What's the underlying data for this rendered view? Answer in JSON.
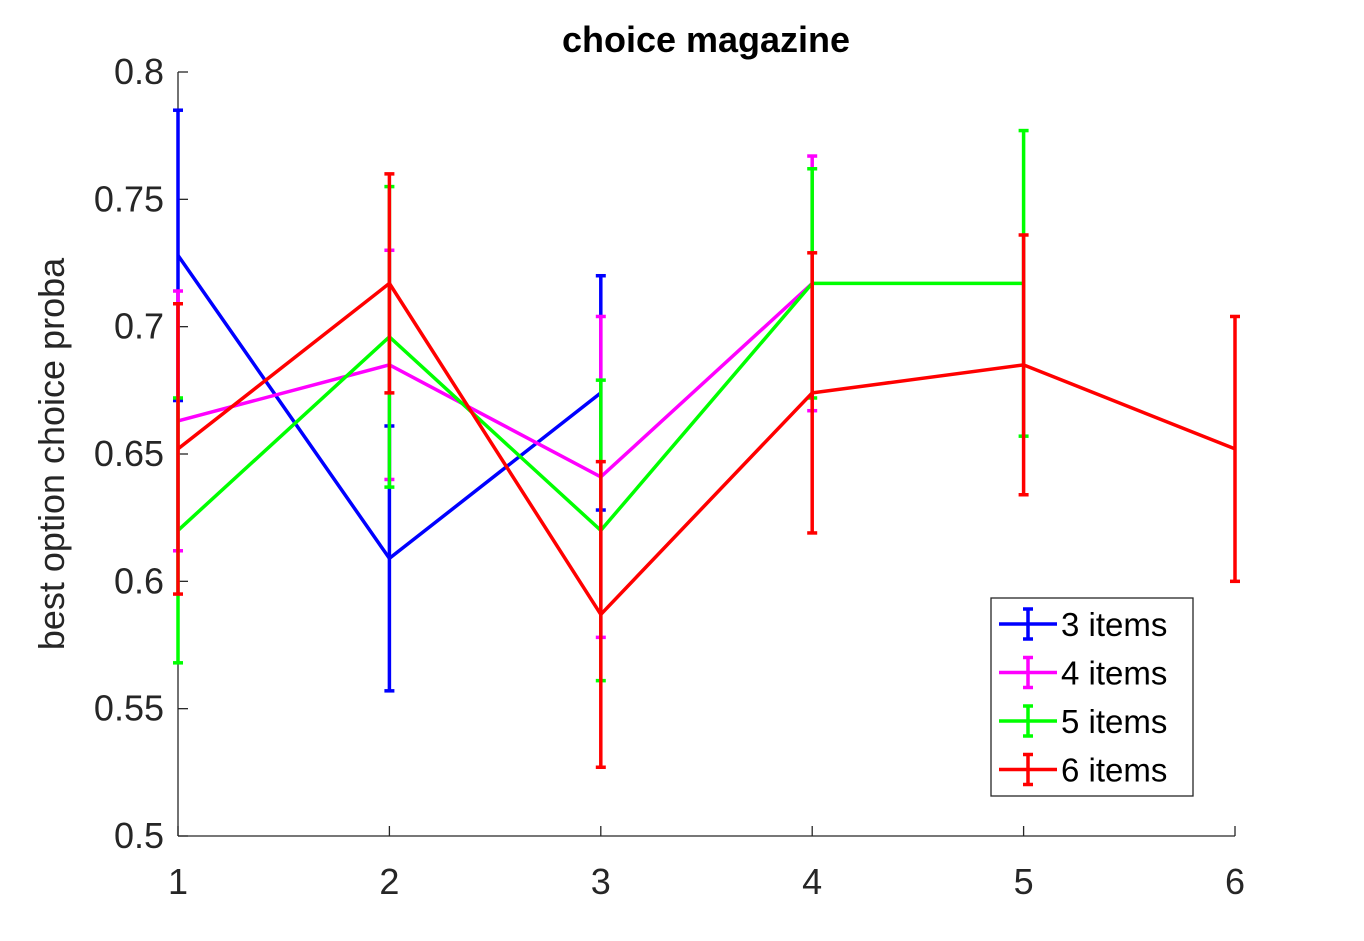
{
  "chart_data": {
    "type": "line",
    "title": "choice magazine",
    "xlabel": "",
    "ylabel": "best option choice proba",
    "xlim": [
      1,
      6
    ],
    "ylim": [
      0.5,
      0.8
    ],
    "x_ticks": [
      "1",
      "2",
      "3",
      "4",
      "5",
      "6"
    ],
    "y_ticks": [
      "0.5",
      "0.55",
      "0.6",
      "0.65",
      "0.7",
      "0.75",
      "0.8"
    ],
    "grid": false,
    "legend_position": "bottom-right",
    "series": [
      {
        "name": "3 items",
        "color": "#0000ff",
        "x": [
          1,
          2,
          3
        ],
        "y": [
          0.728,
          0.609,
          0.674
        ],
        "err": [
          0.057,
          0.052,
          0.046
        ]
      },
      {
        "name": "4 items",
        "color": "#ff00ff",
        "x": [
          1,
          2,
          3,
          4
        ],
        "y": [
          0.663,
          0.685,
          0.641,
          0.717
        ],
        "err": [
          0.051,
          0.045,
          0.063,
          0.05
        ]
      },
      {
        "name": "5 items",
        "color": "#00ff00",
        "x": [
          1,
          2,
          3,
          4,
          5
        ],
        "y": [
          0.62,
          0.696,
          0.62,
          0.717,
          0.717
        ],
        "err": [
          0.052,
          0.059,
          0.059,
          0.045,
          0.06
        ]
      },
      {
        "name": "6 items",
        "color": "#ff0000",
        "x": [
          1,
          2,
          3,
          4,
          5,
          6
        ],
        "y": [
          0.652,
          0.717,
          0.587,
          0.674,
          0.685,
          0.652
        ],
        "err": [
          0.057,
          0.043,
          0.06,
          0.055,
          0.051,
          0.052
        ]
      }
    ]
  }
}
